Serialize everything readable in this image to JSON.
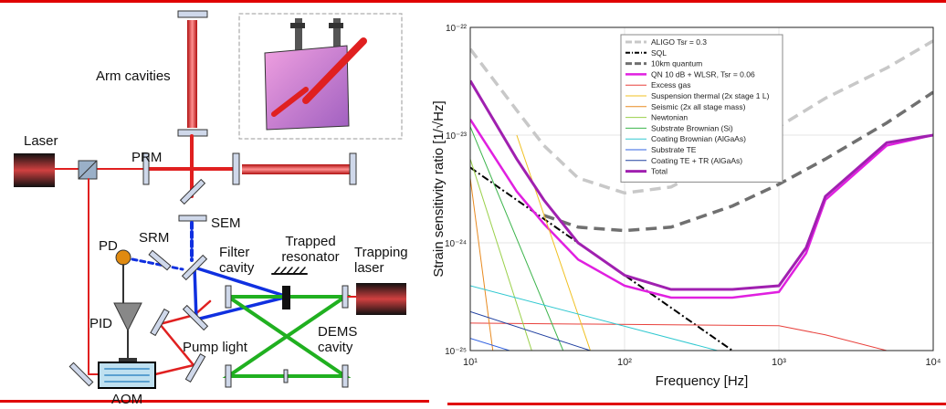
{
  "diagram": {
    "labels": {
      "arm_cavities": "Arm cavities",
      "laser": "Laser",
      "prm": "PRM",
      "sem": "SEM",
      "srm": "SRM",
      "pd": "PD",
      "filter_cavity": "Filter cavity",
      "trapped_resonator": "Trapped resonator",
      "trapping_laser": "Trapping laser",
      "pid": "PID",
      "pump_light": "Pump light",
      "dems_cavity": "DEMS cavity",
      "aom": "AOM"
    }
  },
  "chart_data": {
    "type": "line",
    "xlabel": "Frequency [Hz]",
    "ylabel": "Strain sensitivity ratio [1/√Hz]",
    "log_x": true,
    "log_y": true,
    "grid": true,
    "legend": "upper-left",
    "xlim": [
      10,
      10000
    ],
    "ylim": [
      1e-25,
      1e-22
    ],
    "xticks": [
      {
        "value": 10,
        "label": "10¹"
      },
      {
        "value": 100,
        "label": "10²"
      },
      {
        "value": 1000,
        "label": "10³"
      },
      {
        "value": 10000,
        "label": "10⁴"
      }
    ],
    "yticks": [
      {
        "value": 1e-25,
        "label": "10⁻²⁵"
      },
      {
        "value": 1e-24,
        "label": "10⁻²⁴"
      },
      {
        "value": 1e-23,
        "label": "10⁻²³"
      },
      {
        "value": 1e-22,
        "label": "10⁻²²"
      }
    ],
    "series": [
      {
        "name": "ALIGO Tsr = 0.3",
        "color": "#c8c8c8",
        "dash": "dashed",
        "width": 3.5,
        "x": [
          10,
          20,
          30,
          50,
          100,
          200,
          500,
          1000,
          2000,
          5000,
          10000
        ],
        "values": [
          6.3e-23,
          1.7e-23,
          8e-24,
          4e-24,
          2.9e-24,
          3.3e-24,
          6.5e-24,
          1.2e-23,
          2.2e-23,
          4.2e-23,
          7.5e-23
        ]
      },
      {
        "name": "SQL",
        "color": "#000000",
        "dash": "dashdot",
        "width": 2,
        "x": [
          10,
          100,
          500
        ],
        "values": [
          5e-24,
          5e-25,
          1e-25
        ]
      },
      {
        "name": "10km quantum",
        "color": "#707070",
        "dash": "dashed",
        "width": 3.5,
        "x": [
          30,
          50,
          100,
          200,
          500,
          1000,
          2000,
          5000,
          10000
        ],
        "values": [
          1.8e-24,
          1.4e-24,
          1.3e-24,
          1.4e-24,
          2.2e-24,
          3.5e-24,
          6e-24,
          1.3e-23,
          2.5e-23
        ]
      },
      {
        "name": "QN 10 dB + WLSR, Tsr = 0.06",
        "color": "#e020e0",
        "dash": "solid",
        "width": 2.5,
        "x": [
          10,
          20,
          30,
          50,
          100,
          200,
          500,
          1000,
          1500,
          2000,
          5000,
          10000
        ],
        "values": [
          1.4e-23,
          3e-24,
          1.5e-24,
          7e-25,
          4e-25,
          3.1e-25,
          3.1e-25,
          3.5e-25,
          8e-25,
          2.5e-24,
          8e-24,
          1e-23
        ]
      },
      {
        "name": "Excess gas",
        "color": "#e8413c",
        "dash": "solid",
        "width": 1,
        "x": [
          10,
          1000,
          2000,
          5000
        ],
        "values": [
          1.8e-25,
          1.7e-25,
          1.4e-25,
          1e-25
        ]
      },
      {
        "name": "Suspension thermal (2x stage 1 L)",
        "color": "#f0c020",
        "dash": "solid",
        "width": 1,
        "x": [
          20,
          60
        ],
        "values": [
          1e-23,
          1e-25
        ]
      },
      {
        "name": "Seismic (2x all stage mass)",
        "color": "#e88a20",
        "dash": "solid",
        "width": 1,
        "x": [
          10,
          14
        ],
        "values": [
          4e-24,
          1e-25
        ]
      },
      {
        "name": "Newtonian",
        "color": "#9ad04a",
        "dash": "solid",
        "width": 1,
        "x": [
          10,
          25
        ],
        "values": [
          6e-24,
          1e-25
        ]
      },
      {
        "name": "Substrate Brownian (Si)",
        "color": "#3cb44b",
        "dash": "solid",
        "width": 1,
        "x": [
          10,
          40
        ],
        "values": [
          1.2e-23,
          1e-25
        ]
      },
      {
        "name": "Coating Brownian (AlGaAs)",
        "color": "#30c8d0",
        "dash": "solid",
        "width": 1,
        "x": [
          10,
          400
        ],
        "values": [
          4e-25,
          1e-25
        ]
      },
      {
        "name": "Substrate TE",
        "color": "#3060e0",
        "dash": "solid",
        "width": 1,
        "x": [
          10,
          18
        ],
        "values": [
          1.3e-25,
          1e-25
        ]
      },
      {
        "name": "Coating TE + TR (AlGaAs)",
        "color": "#2040a0",
        "dash": "solid",
        "width": 1,
        "x": [
          10,
          60
        ],
        "values": [
          2.3e-25,
          1e-25
        ]
      },
      {
        "name": "Total",
        "color": "#a020b0",
        "dash": "solid",
        "width": 3,
        "x": [
          10,
          20,
          30,
          50,
          100,
          200,
          500,
          1000,
          1500,
          2000,
          5000,
          10000
        ],
        "values": [
          3.2e-23,
          6e-24,
          2.5e-24,
          1e-24,
          5e-25,
          3.7e-25,
          3.7e-25,
          4e-25,
          9e-25,
          2.7e-24,
          8.5e-24,
          1e-23
        ]
      }
    ]
  }
}
